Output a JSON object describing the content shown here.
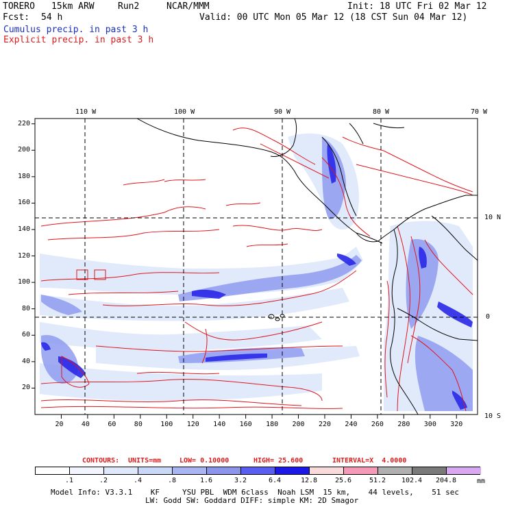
{
  "header": {
    "model": "TORERO",
    "resolution": "15km ARW",
    "run": "Run2",
    "org": "NCAR/MMM",
    "init": "Init: 18 UTC Fri 02 Mar 12",
    "fcst_label": "Fcst:",
    "fcst_value": "54 h",
    "valid": "Valid: 00 UTC Mon 05 Mar 12 (18 CST Sun 04 Mar 12)",
    "legend_cumulus": "Cumulus precip. in past 3 h",
    "legend_explicit": "Explicit precip. in past 3 h"
  },
  "map": {
    "lon_labels": [
      "110 W",
      "100 W",
      "90 W",
      "80 W",
      "70 W"
    ],
    "lat_labels": [
      "10 N",
      "0",
      "10 S"
    ],
    "x_ticks": [
      "20",
      "40",
      "60",
      "80",
      "100",
      "120",
      "140",
      "160",
      "180",
      "200",
      "220",
      "240",
      "260",
      "280",
      "300",
      "320"
    ],
    "y_ticks": [
      "220",
      "200",
      "180",
      "160",
      "140",
      "120",
      "100",
      "80",
      "60",
      "40",
      "20"
    ],
    "colors": {
      "cumulus_light": "#dfe9fb",
      "cumulus_mid": "#8f9cf0",
      "cumulus_dark": "#2a28e8",
      "explicit_contour": "#e0141c",
      "coast": "#000000"
    }
  },
  "contours": {
    "label": "CONTOURS:",
    "units": "UNITS=mm",
    "low": "LOW= 0.10000",
    "high": "HIGH= 25.600",
    "interval": "INTERVAL=X  4.0000"
  },
  "colorbar": {
    "colors": [
      "#ffffff",
      "#f2f5fd",
      "#dfe8fa",
      "#c8d8f6",
      "#a9b5f0",
      "#8c95ec",
      "#5a5ef0",
      "#1c18e6",
      "#f9dada",
      "#f49ab8",
      "#b0b0b0",
      "#7a7a7a",
      "#d8a8f0"
    ],
    "labels": [
      ".1",
      ".2",
      ".4",
      ".8",
      "1.6",
      "3.2",
      "6.4",
      "12.8",
      "25.6",
      "51.2",
      "102.4",
      "204.8"
    ],
    "unit": "mm"
  },
  "footer": {
    "line1": "Model Info: V3.3.1    KF     YSU PBL  WDM 6class  Noah LSM  15 km,    44 levels,    51 sec",
    "line2": "LW: Godd SW: Goddard DIFF: simple KM: 2D Smagor"
  }
}
